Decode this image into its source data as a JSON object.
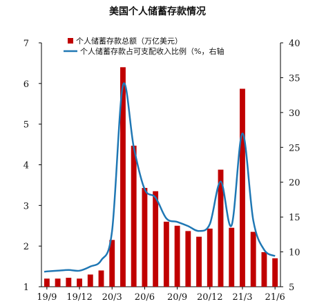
{
  "chart_data": {
    "type": "bar",
    "title": "美国个人储蓄存款情况",
    "x_tick_labels": [
      "19/9",
      "19/12",
      "20/3",
      "20/6",
      "20/9",
      "20/12",
      "21/3",
      "21/6"
    ],
    "x": [
      "2019-09",
      "2019-10",
      "2019-11",
      "2019-12",
      "2020-01",
      "2020-02",
      "2020-03",
      "2020-04",
      "2020-05",
      "2020-06",
      "2020-07",
      "2020-08",
      "2020-09",
      "2020-10",
      "2020-11",
      "2020-12",
      "2021-01",
      "2021-02",
      "2021-03",
      "2021-04",
      "2021-05",
      "2021-06"
    ],
    "left_axis": {
      "ylim": [
        1,
        7
      ],
      "ticks": [
        "1",
        "2",
        "3",
        "4",
        "5",
        "6",
        "7"
      ]
    },
    "right_axis": {
      "ylim": [
        5,
        40
      ],
      "ticks": [
        "5",
        "10",
        "15",
        "20",
        "25",
        "30",
        "35",
        "40"
      ]
    },
    "series": [
      {
        "name": "个人储蓄存款总额（万亿美元）",
        "type": "bar",
        "axis": "left",
        "color": "#c00000",
        "values": [
          1.2,
          1.2,
          1.22,
          1.2,
          1.3,
          1.4,
          2.15,
          6.4,
          4.47,
          3.43,
          3.35,
          2.6,
          2.5,
          2.37,
          2.23,
          2.43,
          3.88,
          2.45,
          5.87,
          2.35,
          1.85,
          1.7
        ]
      },
      {
        "name": "个人储蓄存款占可支配收入比例（%，右轴",
        "type": "line",
        "axis": "right",
        "color": "#1f77b4",
        "values": [
          7.2,
          7.3,
          7.4,
          7.3,
          7.9,
          8.8,
          13.0,
          33.9,
          25.0,
          19.0,
          17.8,
          14.8,
          14.3,
          13.7,
          13.0,
          14.0,
          20.1,
          13.8,
          27.0,
          14.5,
          10.3,
          9.4
        ]
      }
    ],
    "legend_position": "top-left",
    "grid": false
  }
}
